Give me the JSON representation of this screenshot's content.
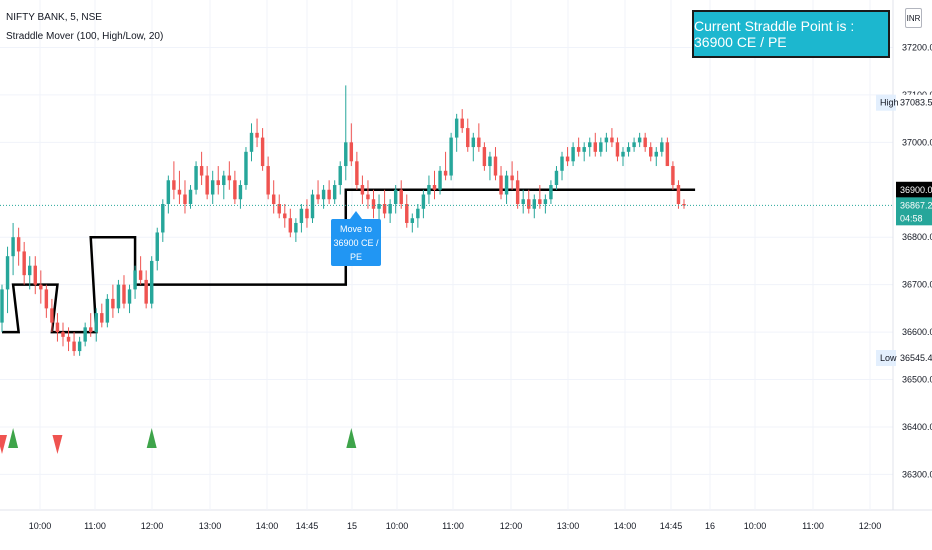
{
  "legend": {
    "symbol": "NIFTY BANK, 5, NSE",
    "indicator": "Straddle Mover (100, High/Low, 20)"
  },
  "banner": {
    "text": "Current Straddle Point is : 36900 CE / PE",
    "color": "#1cb7cf"
  },
  "currency": "INR",
  "tooltip": {
    "line1": "Move to",
    "line2": "36900 CE / PE"
  },
  "colors": {
    "up": "#26a69a",
    "down": "#ef5350",
    "straddle": "#000000",
    "current": "#26a69a",
    "signal_up": "#3ea44a",
    "signal_down": "#ef5350"
  },
  "chart_data": {
    "type": "candlestick",
    "title": "NIFTY BANK, 5, NSE",
    "ylim": [
      36225,
      37300
    ],
    "y_ticks": [
      "37200.00",
      "37100.00",
      "37000.00",
      "36800.00",
      "36700.00",
      "36600.00",
      "36500.00",
      "36400.00",
      "36300.00"
    ],
    "x_ticks": [
      "10:00",
      "11:00",
      "12:00",
      "13:00",
      "14:00",
      "14:45",
      "15",
      "10:00",
      "11:00",
      "12:00",
      "13:00",
      "14:00",
      "14:45",
      "16",
      "10:00",
      "11:00",
      "12:00"
    ],
    "price_labels": [
      {
        "tag": "High",
        "value": "37083.50"
      },
      {
        "tag": "",
        "value": "36900.00"
      },
      {
        "tag": "",
        "value": "36867.20",
        "countdown": "04:58"
      },
      {
        "tag": "Low",
        "value": "36545.40"
      }
    ],
    "straddle_levels": [
      {
        "from": 0,
        "to": 2,
        "level": 36600
      },
      {
        "from": 2,
        "to": 9,
        "level": 36700
      },
      {
        "from": 9,
        "to": 16,
        "level": 36600
      },
      {
        "from": 16,
        "to": 23,
        "level": 36800
      },
      {
        "from": 23,
        "to": 22,
        "level": 36800
      },
      {
        "from": 24,
        "to": 61,
        "level": 36700
      },
      {
        "from": 62,
        "to": 124,
        "level": 36900
      }
    ],
    "signals": [
      {
        "index": 0,
        "dir": "down"
      },
      {
        "index": 2,
        "dir": "up"
      },
      {
        "index": 10,
        "dir": "down"
      },
      {
        "index": 27,
        "dir": "up"
      },
      {
        "index": 63,
        "dir": "up"
      }
    ],
    "candles": [
      [
        36620,
        36700,
        36600,
        36690
      ],
      [
        36690,
        36780,
        36640,
        36760
      ],
      [
        36760,
        36830,
        36720,
        36800
      ],
      [
        36800,
        36820,
        36740,
        36770
      ],
      [
        36770,
        36790,
        36700,
        36720
      ],
      [
        36720,
        36760,
        36690,
        36740
      ],
      [
        36740,
        36760,
        36680,
        36700
      ],
      [
        36700,
        36730,
        36660,
        36690
      ],
      [
        36690,
        36700,
        36630,
        36650
      ],
      [
        36650,
        36670,
        36600,
        36620
      ],
      [
        36620,
        36640,
        36580,
        36600
      ],
      [
        36600,
        36620,
        36570,
        36590
      ],
      [
        36590,
        36610,
        36560,
        36580
      ],
      [
        36580,
        36600,
        36550,
        36560
      ],
      [
        36560,
        36590,
        36550,
        36580
      ],
      [
        36580,
        36620,
        36570,
        36610
      ],
      [
        36610,
        36640,
        36590,
        36600
      ],
      [
        36600,
        36650,
        36580,
        36640
      ],
      [
        36640,
        36660,
        36610,
        36620
      ],
      [
        36620,
        36680,
        36610,
        36670
      ],
      [
        36670,
        36700,
        36630,
        36650
      ],
      [
        36650,
        36710,
        36640,
        36700
      ],
      [
        36700,
        36720,
        36650,
        36660
      ],
      [
        36660,
        36700,
        36640,
        36690
      ],
      [
        36690,
        36740,
        36670,
        36730
      ],
      [
        36730,
        36760,
        36700,
        36710
      ],
      [
        36710,
        36730,
        36650,
        36660
      ],
      [
        36660,
        36760,
        36650,
        36750
      ],
      [
        36750,
        36820,
        36730,
        36810
      ],
      [
        36810,
        36880,
        36790,
        36870
      ],
      [
        36870,
        36930,
        36850,
        36920
      ],
      [
        36920,
        36960,
        36880,
        36900
      ],
      [
        36900,
        36940,
        36870,
        36890
      ],
      [
        36890,
        36920,
        36850,
        36870
      ],
      [
        36870,
        36910,
        36860,
        36900
      ],
      [
        36900,
        36960,
        36890,
        36950
      ],
      [
        36950,
        36980,
        36910,
        36930
      ],
      [
        36930,
        36950,
        36880,
        36890
      ],
      [
        36890,
        36940,
        36870,
        36920
      ],
      [
        36920,
        36950,
        36890,
        36910
      ],
      [
        36910,
        36940,
        36880,
        36930
      ],
      [
        36930,
        36960,
        36900,
        36920
      ],
      [
        36920,
        36940,
        36870,
        36880
      ],
      [
        36880,
        36920,
        36860,
        36910
      ],
      [
        36910,
        36990,
        36900,
        36980
      ],
      [
        36980,
        37040,
        36960,
        37020
      ],
      [
        37020,
        37050,
        36990,
        37010
      ],
      [
        37010,
        37030,
        36940,
        36950
      ],
      [
        36950,
        36970,
        36880,
        36890
      ],
      [
        36890,
        36920,
        36850,
        36870
      ],
      [
        36870,
        36890,
        36840,
        36850
      ],
      [
        36850,
        36870,
        36820,
        36840
      ],
      [
        36840,
        36860,
        36800,
        36810
      ],
      [
        36810,
        36840,
        36790,
        36830
      ],
      [
        36830,
        36870,
        36810,
        36860
      ],
      [
        36860,
        36880,
        36820,
        36840
      ],
      [
        36840,
        36900,
        36830,
        36890
      ],
      [
        36890,
        36920,
        36870,
        36880
      ],
      [
        36880,
        36910,
        36860,
        36900
      ],
      [
        36900,
        36920,
        36870,
        36880
      ],
      [
        36880,
        36920,
        36870,
        36910
      ],
      [
        36910,
        36960,
        36890,
        36950
      ],
      [
        36950,
        37120,
        36920,
        37000
      ],
      [
        37000,
        37040,
        36950,
        36960
      ],
      [
        36960,
        36980,
        36900,
        36910
      ],
      [
        36910,
        36930,
        36870,
        36890
      ],
      [
        36890,
        36920,
        36860,
        36880
      ],
      [
        36880,
        36900,
        36840,
        36860
      ],
      [
        36860,
        36890,
        36830,
        36870
      ],
      [
        36870,
        36900,
        36840,
        36850
      ],
      [
        36850,
        36880,
        36830,
        36870
      ],
      [
        36870,
        36910,
        36850,
        36900
      ],
      [
        36900,
        36920,
        36860,
        36870
      ],
      [
        36870,
        36890,
        36820,
        36830
      ],
      [
        36830,
        36850,
        36810,
        36840
      ],
      [
        36840,
        36870,
        36820,
        36860
      ],
      [
        36860,
        36900,
        36840,
        36890
      ],
      [
        36890,
        36930,
        36870,
        36910
      ],
      [
        36910,
        36940,
        36880,
        36900
      ],
      [
        36900,
        36950,
        36890,
        36940
      ],
      [
        36940,
        36980,
        36920,
        36930
      ],
      [
        36930,
        37020,
        36920,
        37010
      ],
      [
        37010,
        37060,
        36980,
        37050
      ],
      [
        37050,
        37070,
        37020,
        37030
      ],
      [
        37030,
        37050,
        36980,
        36990
      ],
      [
        36990,
        37020,
        36960,
        37010
      ],
      [
        37010,
        37040,
        36980,
        36990
      ],
      [
        36990,
        37000,
        36940,
        36950
      ],
      [
        36950,
        36980,
        36920,
        36970
      ],
      [
        36970,
        36990,
        36920,
        36930
      ],
      [
        36930,
        36950,
        36880,
        36890
      ],
      [
        36890,
        36940,
        36870,
        36930
      ],
      [
        36930,
        36960,
        36900,
        36920
      ],
      [
        36920,
        36940,
        36860,
        36870
      ],
      [
        36870,
        36900,
        36850,
        36880
      ],
      [
        36880,
        36900,
        36850,
        36860
      ],
      [
        36860,
        36890,
        36840,
        36880
      ],
      [
        36880,
        36910,
        36860,
        36870
      ],
      [
        36870,
        36890,
        36850,
        36880
      ],
      [
        36880,
        36920,
        36870,
        36910
      ],
      [
        36910,
        36950,
        36900,
        36940
      ],
      [
        36940,
        36980,
        36920,
        36970
      ],
      [
        36970,
        36990,
        36950,
        36960
      ],
      [
        36960,
        37000,
        36950,
        36990
      ],
      [
        36990,
        37010,
        36970,
        36980
      ],
      [
        36980,
        37000,
        36960,
        36990
      ],
      [
        36990,
        37010,
        36970,
        37000
      ],
      [
        37000,
        37020,
        36970,
        36980
      ],
      [
        36980,
        37010,
        36970,
        37000
      ],
      [
        37000,
        37020,
        36980,
        37010
      ],
      [
        37010,
        37030,
        36990,
        37000
      ],
      [
        37000,
        37010,
        36960,
        36970
      ],
      [
        36970,
        36990,
        36950,
        36980
      ],
      [
        36980,
        37000,
        36970,
        36990
      ],
      [
        36990,
        37010,
        36980,
        37000
      ],
      [
        37000,
        37020,
        36990,
        37010
      ],
      [
        37010,
        37020,
        36980,
        36990
      ],
      [
        36990,
        37000,
        36960,
        36970
      ],
      [
        36970,
        36990,
        36950,
        36980
      ],
      [
        36980,
        37010,
        36970,
        37000
      ],
      [
        37000,
        37010,
        36960,
        36950
      ],
      [
        36950,
        36960,
        36900,
        36910
      ],
      [
        36910,
        36920,
        36860,
        36870
      ],
      [
        36870,
        36880,
        36860,
        36867
      ]
    ]
  }
}
